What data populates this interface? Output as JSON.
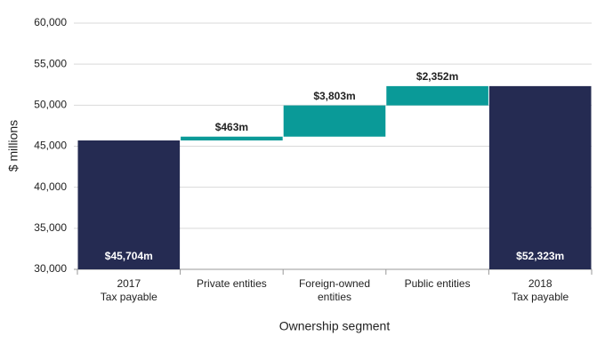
{
  "chart_data": {
    "type": "waterfall",
    "categories": [
      [
        "2017",
        "Tax payable"
      ],
      [
        "Private entities"
      ],
      [
        "Foreign-owned",
        "entities"
      ],
      [
        "Public entities"
      ],
      [
        "2018",
        "Tax payable"
      ]
    ],
    "values": [
      45704,
      463,
      3803,
      2352,
      52323
    ],
    "value_labels": [
      "$45,704m",
      "$463m",
      "$3,803m",
      "$2,352m",
      "$52,323m"
    ],
    "totals": [
      true,
      false,
      false,
      false,
      true
    ],
    "total_color": "#252b52",
    "increase_color": "#0a9a98",
    "ylim": [
      30000,
      60000
    ],
    "yticks": [
      {
        "value": 30000,
        "label": "30,000"
      },
      {
        "value": 35000,
        "label": "35,000"
      },
      {
        "value": 40000,
        "label": "40,000"
      },
      {
        "value": 45000,
        "label": "45,000"
      },
      {
        "value": 50000,
        "label": "50,000"
      },
      {
        "value": 55000,
        "label": "55,000"
      },
      {
        "value": 60000,
        "label": "60,000"
      }
    ],
    "y_label": "$ millions",
    "x_label": "Ownership segment",
    "grid": true
  }
}
